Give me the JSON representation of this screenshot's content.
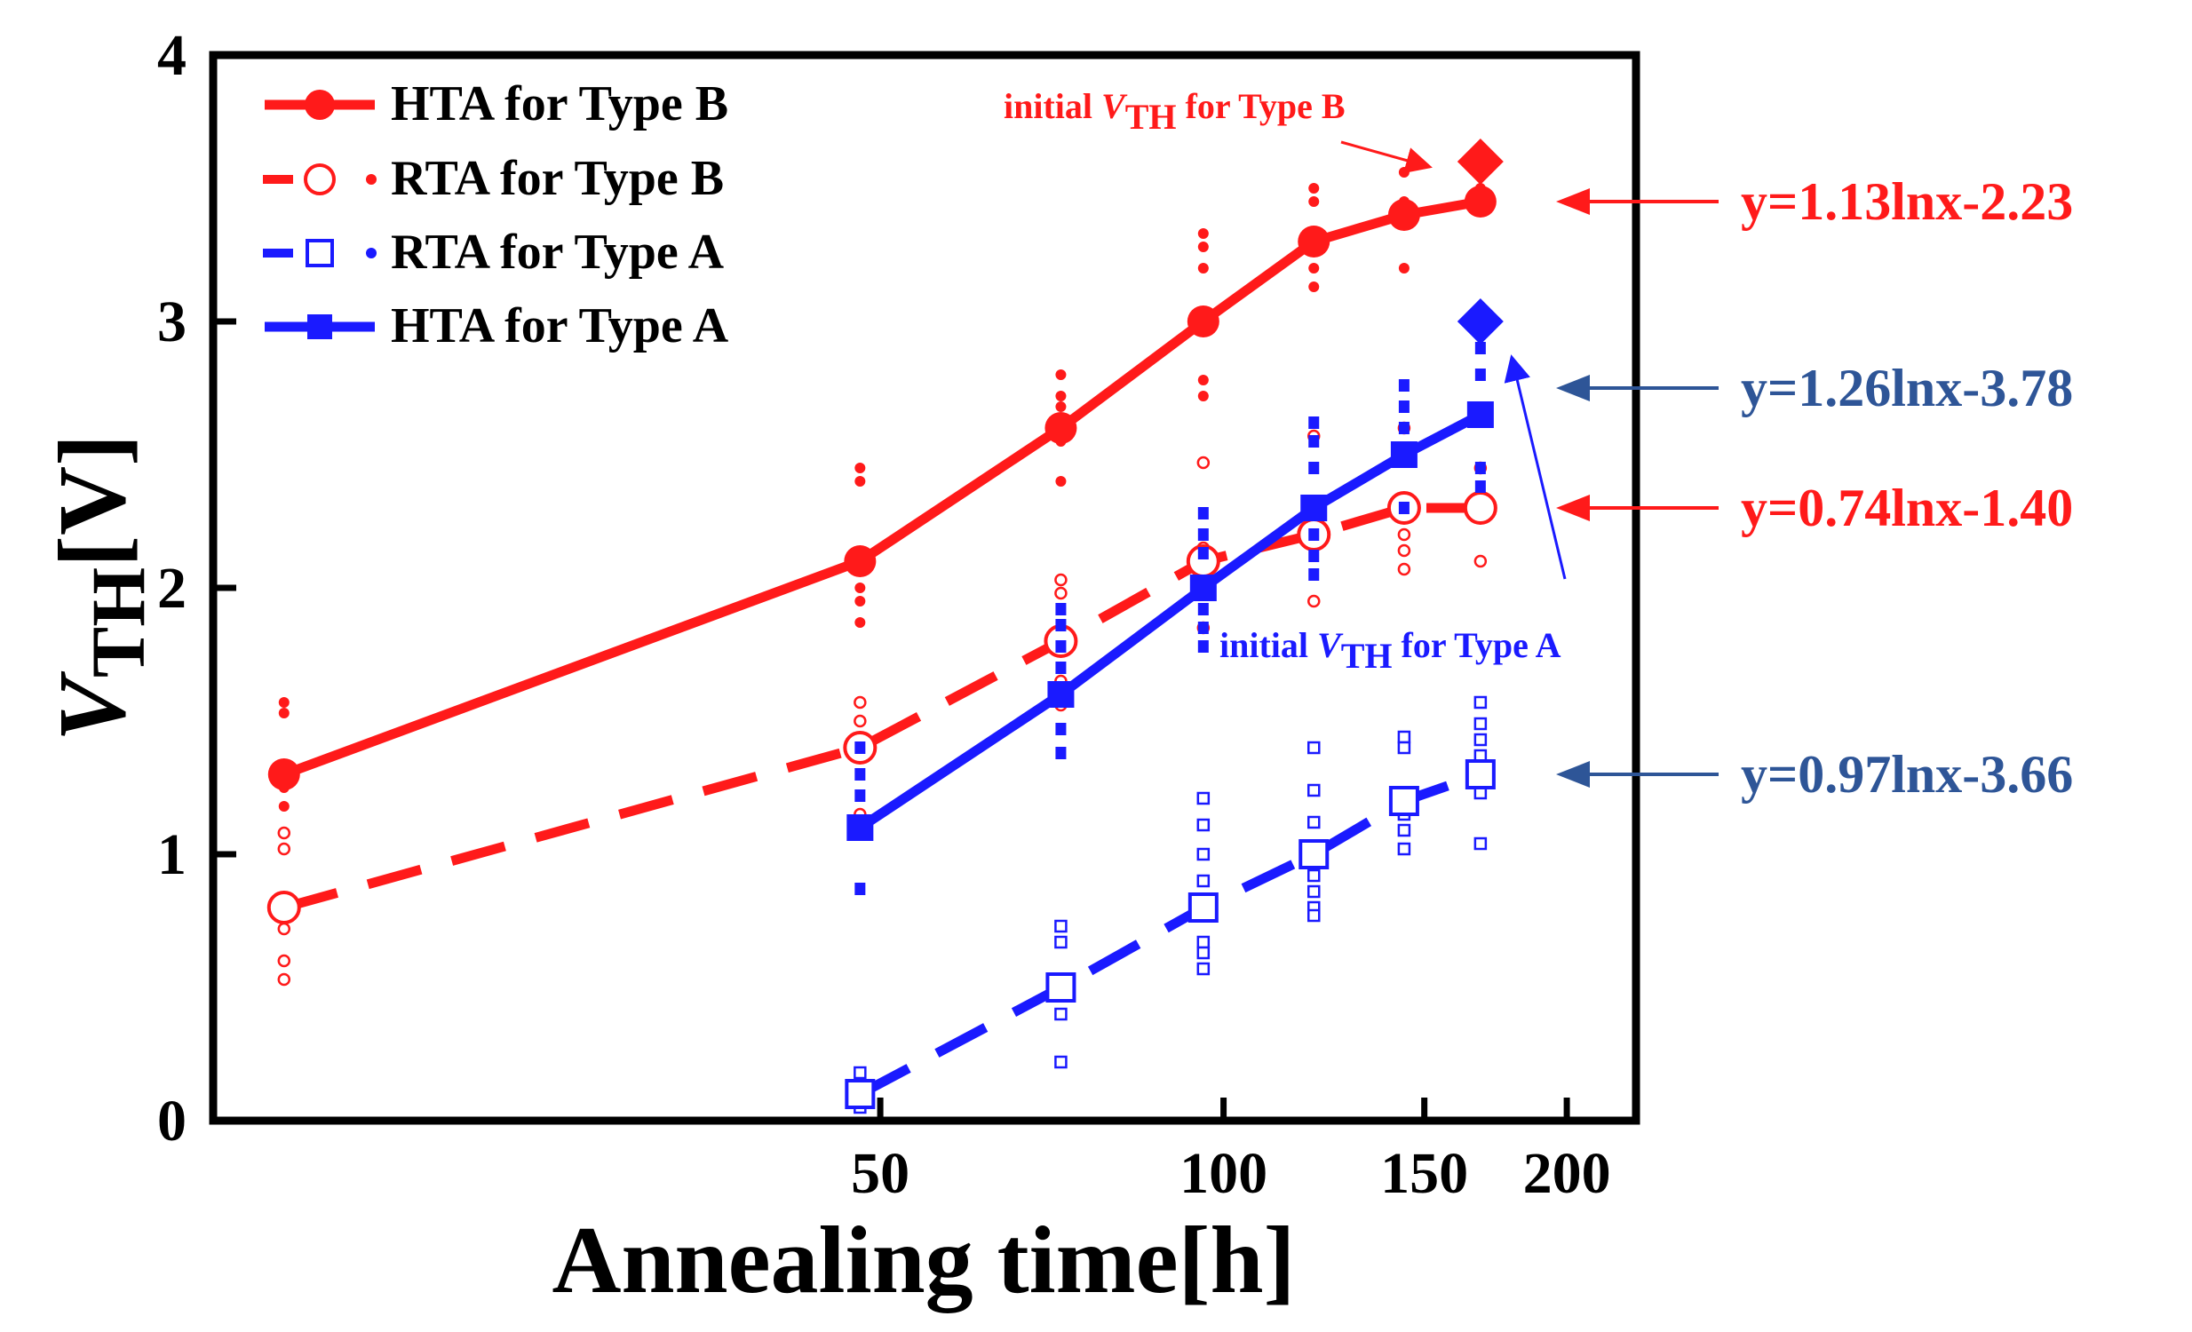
{
  "chart_data": {
    "type": "line",
    "title": "",
    "xlabel": "Annealing time[h]",
    "ylabel_main": "V",
    "ylabel_sub": "TH",
    "ylabel_rest": "[V]",
    "xscale": "log",
    "xlim": [
      13,
      230
    ],
    "ylim": [
      0,
      4
    ],
    "xticks": [
      50,
      100,
      150,
      200
    ],
    "xtick_labels": [
      "50",
      "100",
      "150",
      "200"
    ],
    "yticks": [
      0,
      1,
      2,
      3,
      4
    ],
    "ytick_labels": [
      "0",
      "1",
      "2",
      "3",
      "4"
    ],
    "grid": false,
    "legend_position": "top-left",
    "colors": {
      "red": "#ff1a1a",
      "blue": "#1a1aff",
      "annotation_blue": "#2e5597"
    },
    "series": [
      {
        "name": "HTA for Type B",
        "color": "#ff1a1a",
        "style": "solid",
        "marker": "filled-circle",
        "x": [
          15,
          48,
          72,
          96,
          120,
          144,
          168
        ],
        "y": [
          1.3,
          2.1,
          2.6,
          3.0,
          3.3,
          3.4,
          3.45
        ],
        "scatter": [
          [
            15,
            1.57
          ],
          [
            15,
            1.53
          ],
          [
            15,
            1.25
          ],
          [
            15,
            1.18
          ],
          [
            48,
            2.45
          ],
          [
            48,
            2.4
          ],
          [
            48,
            2.0
          ],
          [
            48,
            1.95
          ],
          [
            48,
            1.87
          ],
          [
            72,
            2.8
          ],
          [
            72,
            2.72
          ],
          [
            72,
            2.68
          ],
          [
            72,
            2.55
          ],
          [
            72,
            2.4
          ],
          [
            96,
            3.33
          ],
          [
            96,
            3.28
          ],
          [
            96,
            3.2
          ],
          [
            96,
            2.78
          ],
          [
            96,
            2.72
          ],
          [
            120,
            3.5
          ],
          [
            120,
            3.45
          ],
          [
            120,
            3.2
          ],
          [
            120,
            3.13
          ],
          [
            144,
            3.56
          ],
          [
            144,
            3.45
          ],
          [
            144,
            3.2
          ],
          [
            168,
            3.5
          ],
          [
            168,
            3.42
          ]
        ]
      },
      {
        "name": "RTA for Type B",
        "color": "#ff1a1a",
        "style": "dashed",
        "marker": "open-circle",
        "x": [
          15,
          48,
          72,
          96,
          120,
          144,
          168
        ],
        "y": [
          0.8,
          1.4,
          1.8,
          2.1,
          2.2,
          2.3,
          2.3
        ],
        "scatter": [
          [
            15,
            1.08
          ],
          [
            15,
            1.02
          ],
          [
            15,
            0.72
          ],
          [
            15,
            0.6
          ],
          [
            15,
            0.53
          ],
          [
            48,
            1.57
          ],
          [
            48,
            1.5
          ],
          [
            48,
            1.15
          ],
          [
            72,
            2.03
          ],
          [
            72,
            1.98
          ],
          [
            72,
            1.65
          ],
          [
            72,
            1.56
          ],
          [
            96,
            2.47
          ],
          [
            96,
            2.15
          ],
          [
            96,
            1.85
          ],
          [
            120,
            2.57
          ],
          [
            120,
            1.95
          ],
          [
            144,
            2.6
          ],
          [
            144,
            2.2
          ],
          [
            144,
            2.14
          ],
          [
            144,
            2.07
          ],
          [
            168,
            2.45
          ],
          [
            168,
            2.1
          ]
        ]
      },
      {
        "name": "RTA for Type A",
        "color": "#1a1aff",
        "style": "dashed",
        "marker": "open-square",
        "x": [
          48,
          72,
          96,
          120,
          144,
          168
        ],
        "y": [
          0.1,
          0.5,
          0.8,
          1.0,
          1.2,
          1.3
        ],
        "scatter": [
          [
            48,
            0.18
          ],
          [
            48,
            0.12
          ],
          [
            48,
            0.05
          ],
          [
            72,
            0.73
          ],
          [
            72,
            0.67
          ],
          [
            72,
            0.4
          ],
          [
            72,
            0.22
          ],
          [
            96,
            1.21
          ],
          [
            96,
            1.11
          ],
          [
            96,
            1.0
          ],
          [
            96,
            0.9
          ],
          [
            96,
            0.67
          ],
          [
            96,
            0.63
          ],
          [
            96,
            0.57
          ],
          [
            120,
            1.4
          ],
          [
            120,
            1.24
          ],
          [
            120,
            1.12
          ],
          [
            120,
            0.92
          ],
          [
            120,
            0.86
          ],
          [
            120,
            0.8
          ],
          [
            120,
            0.77
          ],
          [
            144,
            1.44
          ],
          [
            144,
            1.4
          ],
          [
            144,
            1.15
          ],
          [
            144,
            1.09
          ],
          [
            144,
            1.02
          ],
          [
            168,
            1.57
          ],
          [
            168,
            1.49
          ],
          [
            168,
            1.43
          ],
          [
            168,
            1.37
          ],
          [
            168,
            1.23
          ],
          [
            168,
            1.04
          ]
        ]
      },
      {
        "name": "HTA for Type A",
        "color": "#1a1aff",
        "style": "solid",
        "marker": "filled-square",
        "x": [
          48,
          72,
          96,
          120,
          144,
          168
        ],
        "y": [
          1.1,
          1.6,
          2.0,
          2.3,
          2.5,
          2.65
        ],
        "scatter": [
          [
            48,
            1.4
          ],
          [
            48,
            1.3
          ],
          [
            48,
            1.22
          ],
          [
            48,
            0.87
          ],
          [
            72,
            1.92
          ],
          [
            72,
            1.86
          ],
          [
            72,
            1.78
          ],
          [
            72,
            1.7
          ],
          [
            72,
            1.47
          ],
          [
            72,
            1.38
          ],
          [
            96,
            2.28
          ],
          [
            96,
            2.2
          ],
          [
            96,
            2.13
          ],
          [
            96,
            1.92
          ],
          [
            96,
            1.85
          ],
          [
            96,
            1.78
          ],
          [
            120,
            2.62
          ],
          [
            120,
            2.55
          ],
          [
            120,
            2.45
          ],
          [
            120,
            2.2
          ],
          [
            120,
            2.12
          ],
          [
            120,
            2.05
          ],
          [
            144,
            2.76
          ],
          [
            144,
            2.68
          ],
          [
            144,
            2.6
          ],
          [
            144,
            2.3
          ],
          [
            168,
            2.9
          ],
          [
            168,
            2.8
          ],
          [
            168,
            2.45
          ],
          [
            168,
            2.38
          ]
        ]
      }
    ],
    "special_points": [
      {
        "name": "initial VTH for Type B",
        "x": 168,
        "y": 3.6,
        "color": "#ff1a1a",
        "marker": "diamond"
      },
      {
        "name": "initial VTH for Type A",
        "x": 168,
        "y": 3.0,
        "color": "#1a1aff",
        "marker": "diamond"
      }
    ],
    "annotations": [
      {
        "prefix": "initial ",
        "v": "V",
        "sub": "TH",
        "suffix": " for Type B",
        "color": "#ff1a1a"
      },
      {
        "prefix": "initial ",
        "v": "V",
        "sub": "TH",
        "suffix": " for Type A",
        "color": "#1a1aff"
      }
    ],
    "fit_equations": [
      {
        "text": "y=1.13lnx-2.23",
        "color": "#ff1a1a",
        "points_to_y": 3.45
      },
      {
        "text": "y=1.26lnx-3.78",
        "color": "#2e5597",
        "points_to_y": 2.75
      },
      {
        "text": "y=0.74lnx-1.40",
        "color": "#ff1a1a",
        "points_to_y": 2.3
      },
      {
        "text": "y=0.97lnx-3.66",
        "color": "#2e5597",
        "points_to_y": 1.3
      }
    ]
  }
}
